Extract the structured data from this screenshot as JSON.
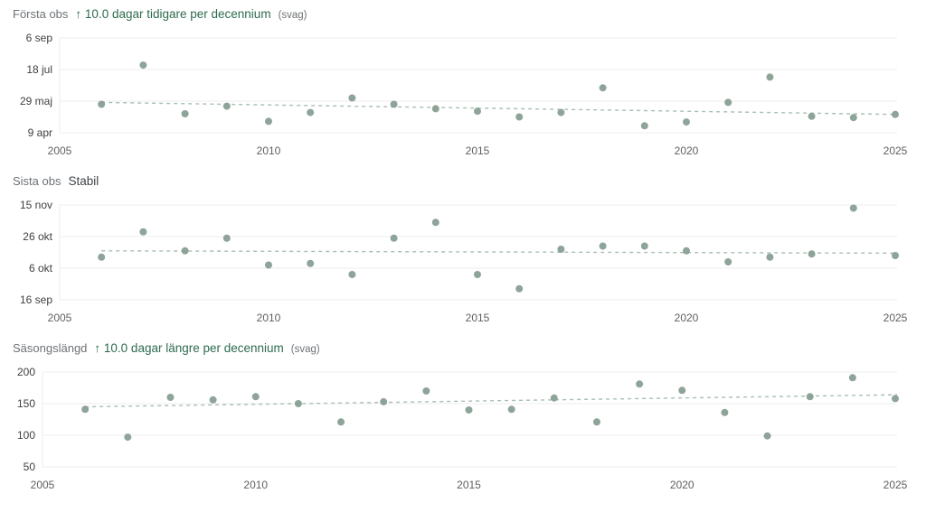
{
  "colors": {
    "background": "#ffffff",
    "point": "#869c90",
    "trendline": "#a9bfb2",
    "gridline": "#ececec",
    "y_tick_label": "#3f3f3f",
    "x_tick_label": "#606060",
    "series_label": "#6e7276",
    "trend_text_green": "#2e6b4e",
    "trend_text_neutral": "#3f444c"
  },
  "chart_data": [
    {
      "type": "scatter",
      "title": "Första obs",
      "trend_annotation": "↑ 10.0 dagar tidigare per decennium",
      "trend_qualifier": "(svag)",
      "annotation_color": "#2e6b4e",
      "y_unit": "day-of-year",
      "xlim": [
        2005,
        2025
      ],
      "ylim": [
        99,
        249
      ],
      "x_ticks": [
        2005,
        2010,
        2015,
        2020,
        2025
      ],
      "y_ticks": [
        {
          "value": 249,
          "label": "6 sep"
        },
        {
          "value": 199,
          "label": "18 jul"
        },
        {
          "value": 149,
          "label": "29 maj"
        },
        {
          "value": 99,
          "label": "9 apr"
        }
      ],
      "grid": true,
      "legend": "none",
      "points": [
        {
          "x": 2006,
          "y": 144
        },
        {
          "x": 2007,
          "y": 206
        },
        {
          "x": 2008,
          "y": 129
        },
        {
          "x": 2009,
          "y": 141
        },
        {
          "x": 2010,
          "y": 117
        },
        {
          "x": 2011,
          "y": 131
        },
        {
          "x": 2012,
          "y": 154
        },
        {
          "x": 2013,
          "y": 144
        },
        {
          "x": 2014,
          "y": 137
        },
        {
          "x": 2015,
          "y": 133
        },
        {
          "x": 2016,
          "y": 124
        },
        {
          "x": 2017,
          "y": 131
        },
        {
          "x": 2018,
          "y": 170
        },
        {
          "x": 2019,
          "y": 110
        },
        {
          "x": 2020,
          "y": 116
        },
        {
          "x": 2021,
          "y": 147
        },
        {
          "x": 2022,
          "y": 187
        },
        {
          "x": 2023,
          "y": 125
        },
        {
          "x": 2024,
          "y": 123
        },
        {
          "x": 2025,
          "y": 128
        }
      ],
      "trendline": {
        "style": "dashed",
        "start": {
          "x": 2006,
          "y": 147
        },
        "end": {
          "x": 2025,
          "y": 128
        }
      }
    },
    {
      "type": "scatter",
      "title": "Sista obs",
      "trend_annotation": "Stabil",
      "trend_qualifier": "",
      "annotation_color": "#3f444c",
      "y_unit": "day-of-year",
      "xlim": [
        2005,
        2025
      ],
      "ylim": [
        259,
        319
      ],
      "x_ticks": [
        2005,
        2010,
        2015,
        2020,
        2025
      ],
      "y_ticks": [
        {
          "value": 319,
          "label": "15 nov"
        },
        {
          "value": 299,
          "label": "26 okt"
        },
        {
          "value": 279,
          "label": "6 okt"
        },
        {
          "value": 259,
          "label": "16 sep"
        }
      ],
      "grid": true,
      "legend": "none",
      "points": [
        {
          "x": 2006,
          "y": 286
        },
        {
          "x": 2007,
          "y": 302
        },
        {
          "x": 2008,
          "y": 290
        },
        {
          "x": 2009,
          "y": 298
        },
        {
          "x": 2010,
          "y": 281
        },
        {
          "x": 2011,
          "y": 282
        },
        {
          "x": 2012,
          "y": 275
        },
        {
          "x": 2013,
          "y": 298
        },
        {
          "x": 2014,
          "y": 308
        },
        {
          "x": 2015,
          "y": 275
        },
        {
          "x": 2016,
          "y": 266
        },
        {
          "x": 2017,
          "y": 291
        },
        {
          "x": 2018,
          "y": 293
        },
        {
          "x": 2019,
          "y": 293
        },
        {
          "x": 2020,
          "y": 290
        },
        {
          "x": 2021,
          "y": 283
        },
        {
          "x": 2022,
          "y": 286
        },
        {
          "x": 2023,
          "y": 288
        },
        {
          "x": 2024,
          "y": 317
        },
        {
          "x": 2025,
          "y": 287
        }
      ],
      "trendline": {
        "style": "dashed",
        "start": {
          "x": 2006,
          "y": 290
        },
        "end": {
          "x": 2025,
          "y": 288.5
        }
      }
    },
    {
      "type": "scatter",
      "title": "Säsongslängd",
      "trend_annotation": "↑ 10.0 dagar längre per decennium",
      "trend_qualifier": "(svag)",
      "annotation_color": "#2e6b4e",
      "y_unit": "days",
      "xlim": [
        2005,
        2025
      ],
      "ylim": [
        50,
        200
      ],
      "x_ticks": [
        2005,
        2010,
        2015,
        2020,
        2025
      ],
      "y_ticks": [
        {
          "value": 200,
          "label": "200"
        },
        {
          "value": 150,
          "label": "150"
        },
        {
          "value": 100,
          "label": "100"
        },
        {
          "value": 50,
          "label": "50"
        }
      ],
      "grid": true,
      "legend": "none",
      "points": [
        {
          "x": 2006,
          "y": 141
        },
        {
          "x": 2007,
          "y": 97
        },
        {
          "x": 2008,
          "y": 160
        },
        {
          "x": 2009,
          "y": 156
        },
        {
          "x": 2010,
          "y": 161
        },
        {
          "x": 2011,
          "y": 150
        },
        {
          "x": 2012,
          "y": 121
        },
        {
          "x": 2013,
          "y": 153
        },
        {
          "x": 2014,
          "y": 170
        },
        {
          "x": 2015,
          "y": 140
        },
        {
          "x": 2016,
          "y": 141
        },
        {
          "x": 2017,
          "y": 159
        },
        {
          "x": 2018,
          "y": 121
        },
        {
          "x": 2019,
          "y": 181
        },
        {
          "x": 2020,
          "y": 171
        },
        {
          "x": 2021,
          "y": 136
        },
        {
          "x": 2022,
          "y": 99
        },
        {
          "x": 2023,
          "y": 161
        },
        {
          "x": 2024,
          "y": 191
        },
        {
          "x": 2025,
          "y": 158
        }
      ],
      "trendline": {
        "style": "dashed",
        "start": {
          "x": 2006,
          "y": 145
        },
        "end": {
          "x": 2025,
          "y": 164
        }
      }
    }
  ]
}
